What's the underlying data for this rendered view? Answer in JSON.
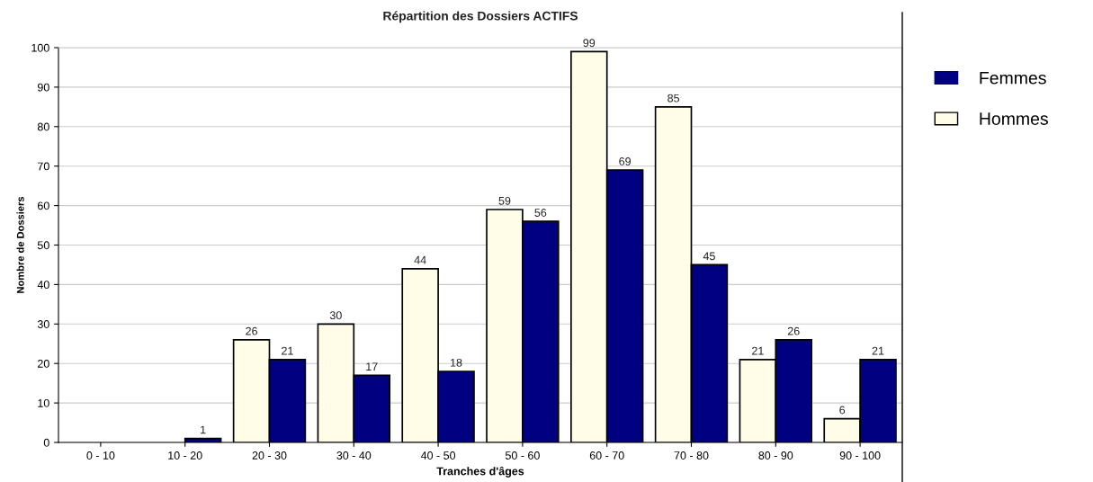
{
  "chart_data": {
    "type": "bar",
    "title": "Répartition des Dossiers ACTIFS",
    "xlabel": "Tranches d'âges",
    "ylabel": "Nombre de Dossiers",
    "categories": [
      "0 - 10",
      "10 - 20",
      "20 - 30",
      "30 - 40",
      "40 - 50",
      "50 - 60",
      "60 - 70",
      "70 - 80",
      "80 - 90",
      "90 - 100"
    ],
    "series": [
      {
        "name": "Hommes",
        "color": "#fffde8",
        "values": [
          0,
          0,
          26,
          30,
          44,
          59,
          99,
          85,
          21,
          6
        ],
        "value_labels": [
          null,
          null,
          "26",
          "30",
          "44",
          "59",
          "99",
          "85",
          "21",
          "6"
        ]
      },
      {
        "name": "Femmes",
        "color": "#000080",
        "values": [
          0,
          1,
          21,
          17,
          18,
          56,
          69,
          45,
          26,
          21
        ],
        "value_labels": [
          null,
          "1",
          "21",
          "17",
          "18",
          "56",
          "69",
          "45",
          "26",
          "21"
        ]
      }
    ],
    "ylim": [
      0,
      100
    ],
    "yticks": [
      0,
      10,
      20,
      30,
      40,
      50,
      60,
      70,
      80,
      90,
      100
    ],
    "grid": "y",
    "legend": "right"
  }
}
